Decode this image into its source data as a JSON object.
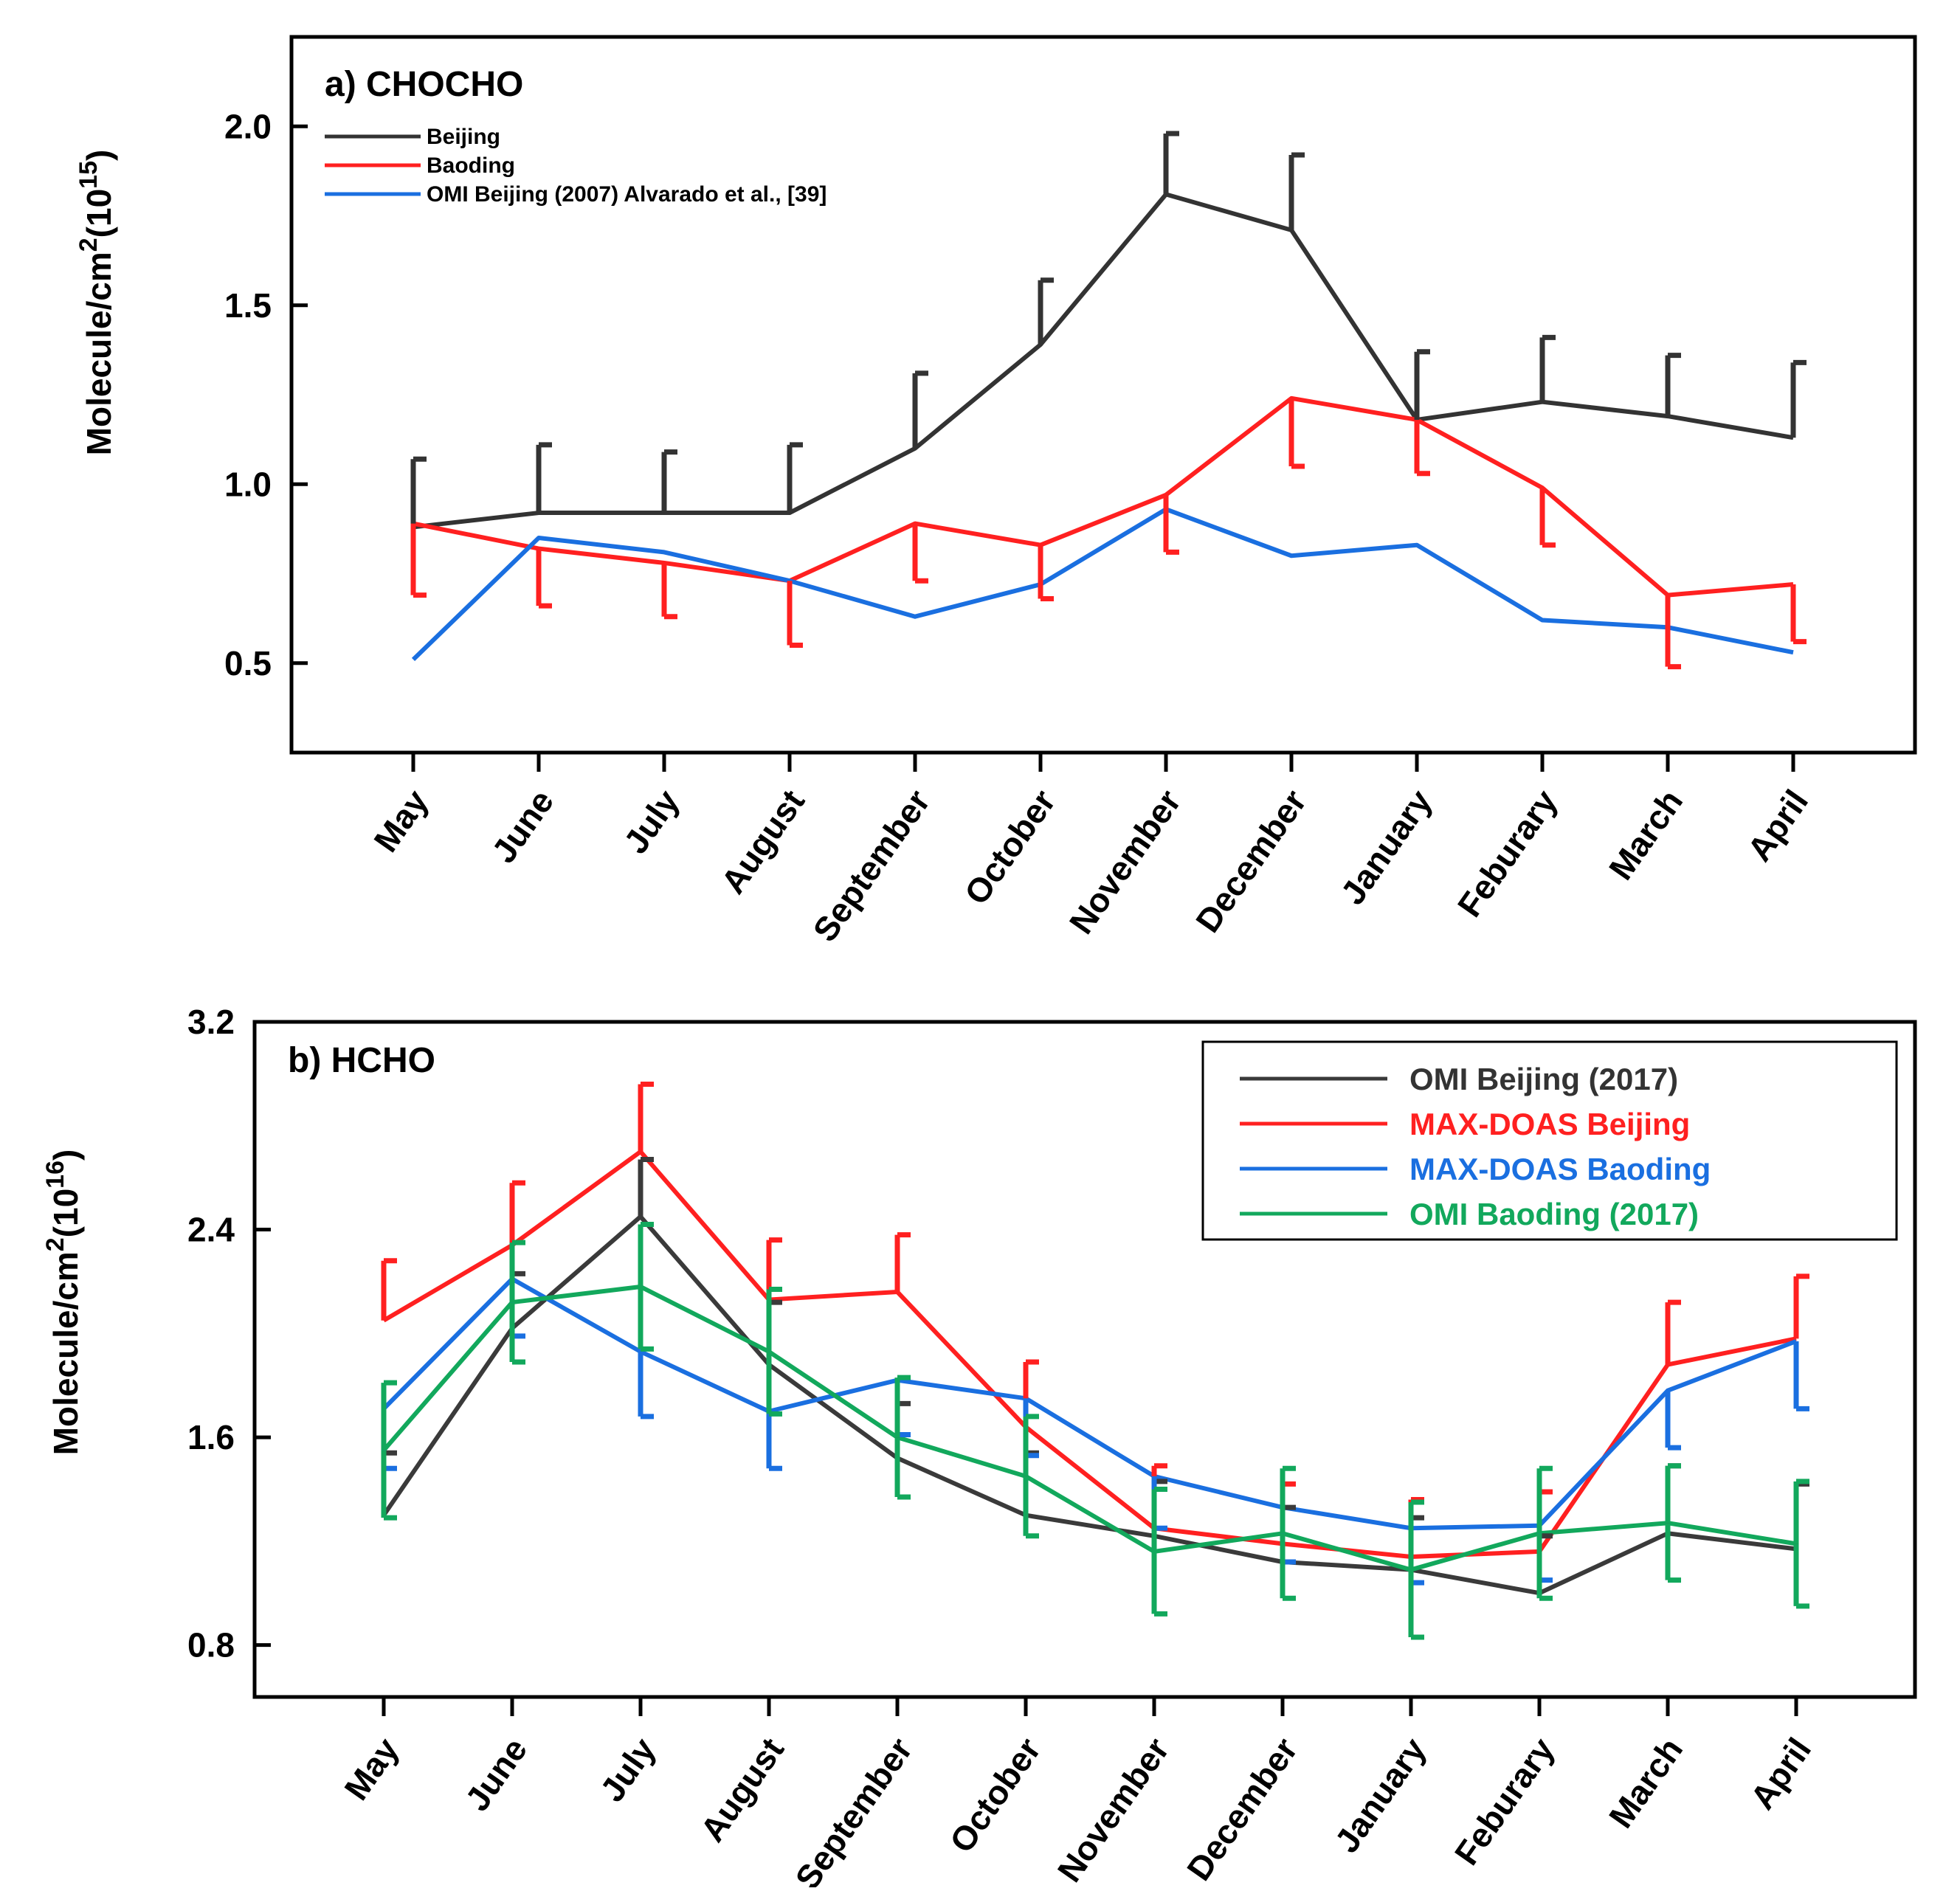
{
  "chart_data": [
    {
      "type": "line",
      "panel": "a",
      "title": "a) CHOCHO",
      "ylabel_main": "Molecule/cm",
      "ylabel_sup": "2",
      "ylabel_paren_open": "(10",
      "ylabel_exp": "15",
      "ylabel_paren_close": ")",
      "ylim": [
        0.25,
        2.25
      ],
      "yticks": [
        0.5,
        1.0,
        1.5,
        2.0
      ],
      "ytick_labels": [
        "0.5",
        "1.0",
        "1.5",
        "2.0"
      ],
      "categories": [
        "May",
        "June",
        "July",
        "August",
        "September",
        "October",
        "November",
        "December",
        "January",
        "Feburary",
        "March",
        "April"
      ],
      "grid": false,
      "legend_position": "top-left",
      "series": [
        {
          "name": "Beijing",
          "color": "#333333",
          "values": [
            0.88,
            0.92,
            0.92,
            0.92,
            1.1,
            1.39,
            1.81,
            1.71,
            1.18,
            1.23,
            1.19,
            1.13
          ],
          "error_direction": "up",
          "errors": [
            0.19,
            0.19,
            0.17,
            0.19,
            0.21,
            0.18,
            0.17,
            0.21,
            0.19,
            0.18,
            0.17,
            0.21
          ]
        },
        {
          "name": "Baoding",
          "color": "#ff2020",
          "values": [
            0.89,
            0.82,
            0.78,
            0.73,
            0.89,
            0.83,
            0.97,
            1.24,
            1.18,
            0.99,
            0.69,
            0.72
          ],
          "error_direction": "down",
          "errors": [
            0.2,
            0.16,
            0.15,
            0.18,
            0.16,
            0.15,
            0.16,
            0.19,
            0.15,
            0.16,
            0.2,
            0.16
          ]
        },
        {
          "name": "OMI Beijing (2007) Alvarado et al., [39]",
          "color": "#1a6fe0",
          "values": [
            0.51,
            0.85,
            0.81,
            0.73,
            0.63,
            0.72,
            0.93,
            0.8,
            0.83,
            0.62,
            0.6,
            0.53
          ]
        }
      ]
    },
    {
      "type": "line",
      "panel": "b",
      "title": "b) HCHO",
      "ylabel_main": "Molecule/cm",
      "ylabel_sup": "2",
      "ylabel_paren_open": "(10",
      "ylabel_exp": "16",
      "ylabel_paren_close": ")",
      "ylim": [
        0.6,
        3.2
      ],
      "yticks": [
        0.8,
        1.6,
        2.4,
        3.2
      ],
      "ytick_labels": [
        "0.8",
        "1.6",
        "2.4",
        "3.2"
      ],
      "categories": [
        "May",
        "June",
        "July",
        "August",
        "September",
        "October",
        "November",
        "December",
        "January",
        "Feburary",
        "March",
        "April"
      ],
      "grid": false,
      "legend_position": "top-right",
      "series": [
        {
          "name": "OMI Beijing (2017)",
          "color": "#3a3a3a",
          "values": [
            1.3,
            2.02,
            2.45,
            1.88,
            1.52,
            1.3,
            1.22,
            1.12,
            1.09,
            1.0,
            1.23,
            1.17
          ],
          "error_direction": "up",
          "errors": [
            0.24,
            0.21,
            0.22,
            0.24,
            0.21,
            0.24,
            0.21,
            0.21,
            0.2,
            0.22,
            0.26,
            0.25
          ]
        },
        {
          "name": "MAX-DOAS Beijing",
          "color": "#ff2020",
          "values": [
            2.05,
            2.34,
            2.7,
            2.13,
            2.16,
            1.64,
            1.25,
            1.19,
            1.14,
            1.16,
            1.88,
            1.98
          ],
          "error_direction": "up",
          "errors": [
            0.23,
            0.24,
            0.26,
            0.23,
            0.22,
            0.25,
            0.24,
            0.23,
            0.22,
            0.23,
            0.24,
            0.24
          ]
        },
        {
          "name": "MAX-DOAS Baoding",
          "color": "#1a6fe0",
          "values": [
            1.71,
            2.21,
            1.93,
            1.7,
            1.82,
            1.75,
            1.45,
            1.33,
            1.25,
            1.26,
            1.78,
            1.97
          ],
          "error_direction": "down",
          "errors": [
            0.23,
            0.22,
            0.25,
            0.22,
            0.21,
            0.22,
            0.2,
            0.21,
            0.21,
            0.21,
            0.22,
            0.26
          ]
        },
        {
          "name": "OMI Baoding (2017)",
          "color": "#12a85c",
          "values": [
            1.55,
            2.12,
            2.18,
            1.93,
            1.6,
            1.45,
            1.16,
            1.23,
            1.09,
            1.23,
            1.27,
            1.19
          ],
          "error_direction": "both",
          "errors": [
            0.26,
            0.23,
            0.24,
            0.24,
            0.23,
            0.23,
            0.24,
            0.25,
            0.26,
            0.25,
            0.22,
            0.24
          ]
        }
      ]
    }
  ]
}
